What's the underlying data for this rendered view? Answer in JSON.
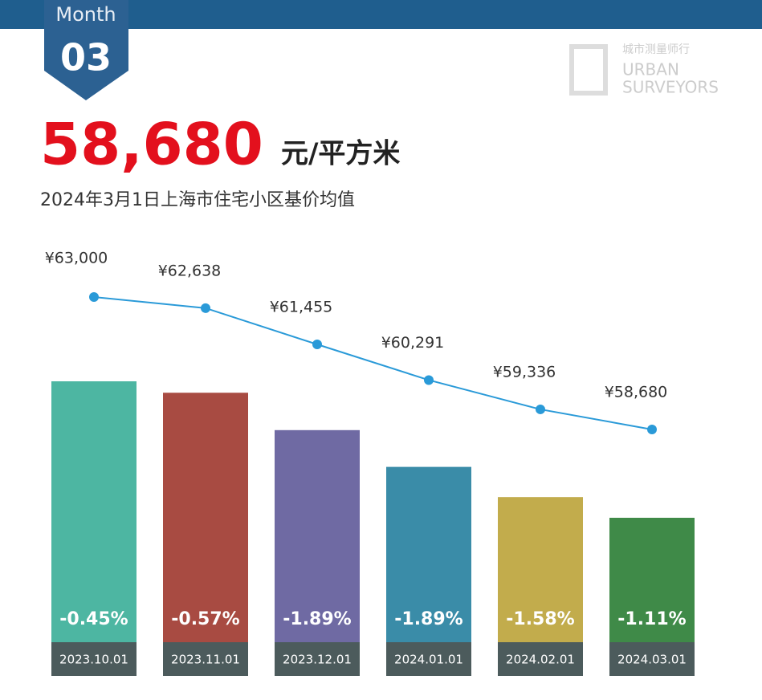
{
  "header": {
    "badge_top": "Month",
    "badge_number": "03",
    "headline_value": "58,680",
    "headline_unit": "元/平方米",
    "subtitle": "2024年3月1日上海市住宅小区基价均值",
    "logo_cn": "城市测量师行",
    "logo_en_1": "URBAN",
    "logo_en_2": "SURVEYORS"
  },
  "chart_data": {
    "type": "line",
    "categories": [
      "2023.10.01",
      "2023.11.01",
      "2023.12.01",
      "2024.01.01",
      "2024.02.01",
      "2024.03.01"
    ],
    "values": [
      63000,
      62638,
      61455,
      60291,
      59336,
      58680
    ],
    "value_labels": [
      "¥63,000",
      "¥62,638",
      "¥61,455",
      "¥60,291",
      "¥59,336",
      "¥58,680"
    ],
    "color": "#2a9ad8",
    "changes": [
      -0.45,
      -0.57,
      -1.89,
      -1.89,
      -1.58,
      -1.11
    ],
    "change_labels": [
      "-0.45%",
      "-0.57%",
      "-1.89%",
      "-1.89%",
      "-1.58%",
      "-1.11%"
    ],
    "bar_colors": [
      "#4db6a2",
      "#a84b42",
      "#6f6aa3",
      "#3a8ca8",
      "#c2ac4c",
      "#3f8a48"
    ]
  }
}
